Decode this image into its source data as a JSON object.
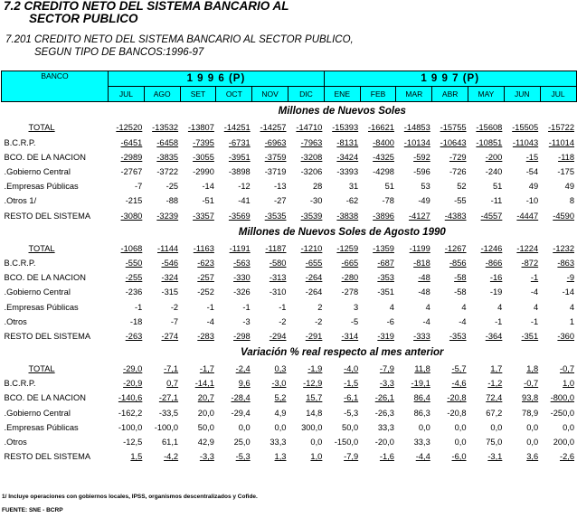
{
  "title": {
    "line1": "7.2 CREDITO NETO DEL SISTEMA BANCARIO AL",
    "line2": "SECTOR PUBLICO"
  },
  "subtitle": {
    "line1": "7.201  CREDITO NETO DEL SISTEMA BANCARIO AL SECTOR PUBLICO,",
    "line2": "SEGUN TIPO DE BANCOS:1996-97"
  },
  "header": {
    "banco": "BANCO",
    "year1": "1 9 9 6 (P)",
    "year2": "1 9 9 7 (P)",
    "months": [
      "JUL",
      "AGO",
      "SET",
      "OCT",
      "NOV",
      "DIC",
      "ENE",
      "FEB",
      "MAR",
      "ABR",
      "MAY",
      "JUN",
      "JUL"
    ]
  },
  "sections": [
    {
      "title": "Millones de Nuevos Soles",
      "rows": [
        {
          "label": "TOTAL",
          "values": [
            "-12520",
            "-13532",
            "-13807",
            "-14251",
            "-14257",
            "-14710",
            "-15393",
            "-16621",
            "-14853",
            "-15755",
            "-15608",
            "-15505",
            "-15722"
          ]
        },
        {
          "label": "B.C.R.P.",
          "values": [
            "-6451",
            "-6458",
            "-7395",
            "-6731",
            "-6963",
            "-7963",
            "-8131",
            "-8400",
            "-10134",
            "-10643",
            "-10851",
            "-11043",
            "-11014"
          ]
        },
        {
          "label": "BCO. DE LA NACION",
          "values": [
            "-2989",
            "-3835",
            "-3055",
            "-3951",
            "-3759",
            "-3208",
            "-3424",
            "-4325",
            "-592",
            "-729",
            "-200",
            "-15",
            "-118"
          ]
        },
        {
          "label": ".Gobierno Central",
          "values": [
            "-2767",
            "-3722",
            "-2990",
            "-3898",
            "-3719",
            "-3206",
            "-3393",
            "-4298",
            "-596",
            "-726",
            "-240",
            "-54",
            "-175"
          ]
        },
        {
          "label": ".Empresas Públicas",
          "values": [
            "-7",
            "-25",
            "-14",
            "-12",
            "-13",
            "28",
            "31",
            "51",
            "53",
            "52",
            "51",
            "49",
            "49"
          ]
        },
        {
          "label": ".Otros 1/",
          "values": [
            "-215",
            "-88",
            "-51",
            "-41",
            "-27",
            "-30",
            "-62",
            "-78",
            "-49",
            "-55",
            "-11",
            "-10",
            "8"
          ]
        },
        {
          "label": "RESTO DEL SISTEMA",
          "values": [
            "-3080",
            "-3239",
            "-3357",
            "-3569",
            "-3535",
            "-3539",
            "-3838",
            "-3896",
            "-4127",
            "-4383",
            "-4557",
            "-4447",
            "-4590"
          ]
        }
      ]
    },
    {
      "title": "Millones de Nuevos Soles de Agosto 1990",
      "rows": [
        {
          "label": "TOTAL",
          "values": [
            "-1068",
            "-1144",
            "-1163",
            "-1191",
            "-1187",
            "-1210",
            "-1259",
            "-1359",
            "-1199",
            "-1267",
            "-1246",
            "-1224",
            "-1232"
          ]
        },
        {
          "label": "B.C.R.P.",
          "values": [
            "-550",
            "-546",
            "-623",
            "-563",
            "-580",
            "-655",
            "-665",
            "-687",
            "-818",
            "-856",
            "-866",
            "-872",
            "-863"
          ]
        },
        {
          "label": "BCO. DE LA NACION",
          "values": [
            "-255",
            "-324",
            "-257",
            "-330",
            "-313",
            "-264",
            "-280",
            "-353",
            "-48",
            "-58",
            "-16",
            "-1",
            "-9"
          ]
        },
        {
          "label": ".Gobierno Central",
          "values": [
            "-236",
            "-315",
            "-252",
            "-326",
            "-310",
            "-264",
            "-278",
            "-351",
            "-48",
            "-58",
            "-19",
            "-4",
            "-14"
          ]
        },
        {
          "label": ".Empresas Públicas",
          "values": [
            "-1",
            "-2",
            "-1",
            "-1",
            "-1",
            "2",
            "3",
            "4",
            "4",
            "4",
            "4",
            "4",
            "4"
          ]
        },
        {
          "label": ".Otros",
          "values": [
            "-18",
            "-7",
            "-4",
            "-3",
            "-2",
            "-2",
            "-5",
            "-6",
            "-4",
            "-4",
            "-1",
            "-1",
            "1"
          ]
        },
        {
          "label": "RESTO DEL SISTEMA",
          "values": [
            "-263",
            "-274",
            "-283",
            "-298",
            "-294",
            "-291",
            "-314",
            "-319",
            "-333",
            "-353",
            "-364",
            "-351",
            "-360"
          ]
        }
      ]
    },
    {
      "title": "Variación % real respecto al mes anterior",
      "rows": [
        {
          "label": "TOTAL",
          "values": [
            "-29,0",
            "-7,1",
            "-1,7",
            "-2,4",
            "0,3",
            "-1,9",
            "-4,0",
            "-7,9",
            "11,8",
            "-5,7",
            "1,7",
            "1,8",
            "-0,7"
          ]
        },
        {
          "label": "B.C.R.P.",
          "values": [
            "-20,9",
            "0,7",
            "-14,1",
            "9,6",
            "-3,0",
            "-12,9",
            "-1,5",
            "-3,3",
            "-19,1",
            "-4,6",
            "-1,2",
            "-0,7",
            "1,0"
          ]
        },
        {
          "label": "BCO. DE LA NACION",
          "values": [
            "-140,6",
            "-27,1",
            "20,7",
            "-28,4",
            "5,2",
            "15,7",
            "-6,1",
            "-26,1",
            "86,4",
            "-20,8",
            "72,4",
            "93,8",
            "-800,0"
          ]
        },
        {
          "label": ".Gobierno Central",
          "values": [
            "-162,2",
            "-33,5",
            "20,0",
            "-29,4",
            "4,9",
            "14,8",
            "-5,3",
            "-26,3",
            "86,3",
            "-20,8",
            "67,2",
            "78,9",
            "-250,0"
          ]
        },
        {
          "label": ".Empresas Públicas",
          "values": [
            "-100,0",
            "-100,0",
            "50,0",
            "0,0",
            "0,0",
            "300,0",
            "50,0",
            "33,3",
            "0,0",
            "0,0",
            "0,0",
            "0,0",
            "0,0"
          ]
        },
        {
          "label": ".Otros",
          "values": [
            "-12,5",
            "61,1",
            "42,9",
            "25,0",
            "33,3",
            "0,0",
            "-150,0",
            "-20,0",
            "33,3",
            "0,0",
            "75,0",
            "0,0",
            "200,0"
          ]
        },
        {
          "label": "RESTO DEL SISTEMA",
          "values": [
            "1,5",
            "-4,2",
            "-3,3",
            "-5,3",
            "1,3",
            "1,0",
            "-7,9",
            "-1,6",
            "-4,4",
            "-6,0",
            "-3,1",
            "3,6",
            "-2,6"
          ]
        }
      ]
    }
  ],
  "footnotes": {
    "note": "1/ Incluye operaciones con gobiernos locales, IPSS, organismos descentralizados y Cofide.",
    "source": "FUENTE: SNE - BCRP"
  }
}
